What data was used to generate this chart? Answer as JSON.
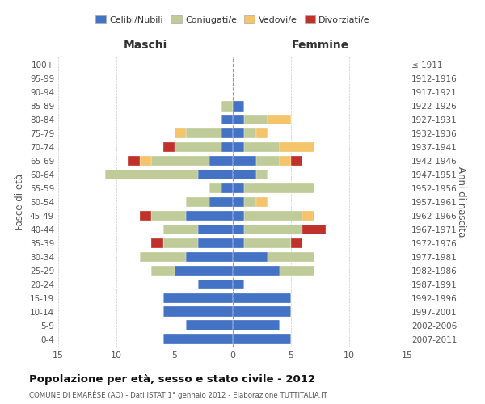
{
  "age_groups": [
    "0-4",
    "5-9",
    "10-14",
    "15-19",
    "20-24",
    "25-29",
    "30-34",
    "35-39",
    "40-44",
    "45-49",
    "50-54",
    "55-59",
    "60-64",
    "65-69",
    "70-74",
    "75-79",
    "80-84",
    "85-89",
    "90-94",
    "95-99",
    "100+"
  ],
  "birth_years": [
    "2007-2011",
    "2002-2006",
    "1997-2001",
    "1992-1996",
    "1987-1991",
    "1982-1986",
    "1977-1981",
    "1972-1976",
    "1967-1971",
    "1962-1966",
    "1957-1961",
    "1952-1956",
    "1947-1951",
    "1942-1946",
    "1937-1941",
    "1932-1936",
    "1927-1931",
    "1922-1926",
    "1917-1921",
    "1912-1916",
    "≤ 1911"
  ],
  "males": {
    "celibi": [
      6,
      4,
      6,
      6,
      3,
      5,
      4,
      3,
      3,
      4,
      2,
      1,
      3,
      2,
      1,
      1,
      1,
      0,
      0,
      0,
      0
    ],
    "coniugati": [
      0,
      0,
      0,
      0,
      0,
      2,
      4,
      3,
      3,
      3,
      2,
      1,
      8,
      5,
      4,
      3,
      0,
      1,
      0,
      0,
      0
    ],
    "vedovi": [
      0,
      0,
      0,
      0,
      0,
      0,
      0,
      0,
      0,
      0,
      0,
      0,
      0,
      1,
      0,
      1,
      0,
      0,
      0,
      0,
      0
    ],
    "divorziati": [
      0,
      0,
      0,
      0,
      0,
      0,
      0,
      1,
      0,
      1,
      0,
      0,
      0,
      1,
      1,
      0,
      0,
      0,
      0,
      0,
      0
    ]
  },
  "females": {
    "nubili": [
      5,
      4,
      5,
      5,
      1,
      4,
      3,
      1,
      1,
      1,
      1,
      1,
      2,
      2,
      1,
      1,
      1,
      1,
      0,
      0,
      0
    ],
    "coniugate": [
      0,
      0,
      0,
      0,
      0,
      3,
      4,
      4,
      5,
      5,
      1,
      6,
      1,
      2,
      3,
      1,
      2,
      0,
      0,
      0,
      0
    ],
    "vedove": [
      0,
      0,
      0,
      0,
      0,
      0,
      0,
      0,
      0,
      1,
      1,
      0,
      0,
      1,
      3,
      1,
      2,
      0,
      0,
      0,
      0
    ],
    "divorziate": [
      0,
      0,
      0,
      0,
      0,
      0,
      0,
      1,
      2,
      0,
      0,
      0,
      0,
      1,
      0,
      0,
      0,
      0,
      0,
      0,
      0
    ]
  },
  "colors": {
    "celibi": "#4472C4",
    "coniugati": "#BFCC9A",
    "vedovi": "#F4C46A",
    "divorziati": "#C0312B"
  },
  "title": "Popolazione per età, sesso e stato civile - 2012",
  "subtitle": "COMUNE DI EMARÈSE (AO) - Dati ISTAT 1° gennaio 2012 - Elaborazione TUTTITALIA.IT",
  "xlabel_left": "Maschi",
  "xlabel_right": "Femmine",
  "ylabel_left": "Fasce di età",
  "ylabel_right": "Anni di nascita",
  "xlim": 15,
  "legend_labels": [
    "Celibi/Nubili",
    "Coniugati/e",
    "Vedovi/e",
    "Divorziati/e"
  ],
  "background_color": "#ffffff",
  "grid_color": "#cccccc"
}
